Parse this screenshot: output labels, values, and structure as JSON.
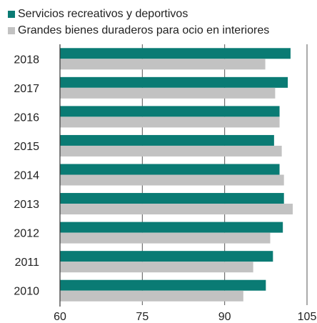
{
  "legend": {
    "items": [
      {
        "label": "Servicios recreativos y deportivos",
        "color": "#0a7b74"
      },
      {
        "label": "Grandes bienes duraderos para ocio en interiores",
        "color": "#c2c2c2"
      }
    ]
  },
  "chart_data": {
    "type": "bar",
    "orientation": "horizontal",
    "categories": [
      "2018",
      "2017",
      "2016",
      "2015",
      "2014",
      "2013",
      "2012",
      "2011",
      "2010"
    ],
    "series": [
      {
        "name": "Servicios recreativos y deportivos",
        "color": "#0a7b74",
        "values": [
          102.0,
          101.5,
          100.0,
          99.0,
          100.0,
          100.8,
          100.6,
          98.8,
          97.5
        ]
      },
      {
        "name": "Grandes bienes duraderos para ocio en interiores",
        "color": "#c2c2c2",
        "values": [
          97.4,
          99.2,
          100.0,
          100.4,
          100.8,
          102.4,
          98.3,
          95.2,
          93.4
        ]
      }
    ],
    "xlim": [
      60,
      105
    ],
    "xticks": [
      60,
      75,
      90,
      105
    ],
    "grid": true,
    "legend_position": "top-left",
    "title": "",
    "xlabel": "",
    "ylabel": ""
  }
}
